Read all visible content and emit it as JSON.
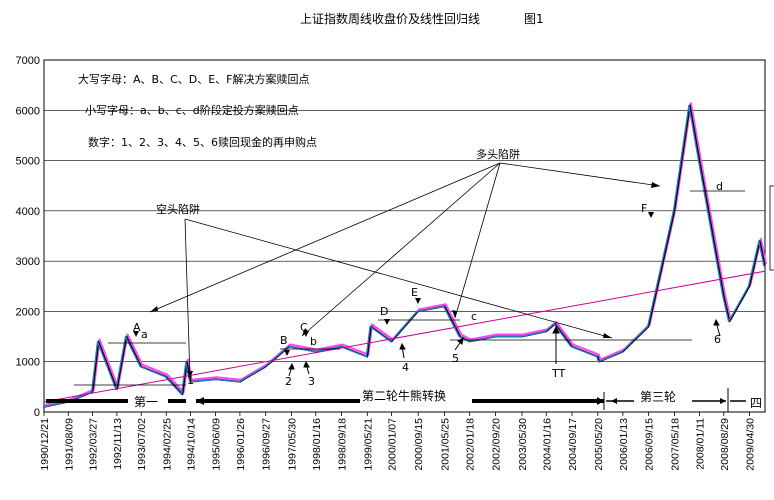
{
  "chart_data": {
    "type": "line",
    "title": "上证指数周线收盘价及线性回归线",
    "figure_label": "图1",
    "ylim": [
      0,
      7000
    ],
    "y_ticks": [
      0,
      1000,
      2000,
      3000,
      4000,
      5000,
      6000,
      7000
    ],
    "x_tick_labels": [
      "1990/12/21",
      "1991/08/09",
      "1992/03/27",
      "1992/11/13",
      "1993/07/02",
      "1994/02/25",
      "1994/10/14",
      "1995/06/09",
      "1996/01/26",
      "1996/09/27",
      "1997/05/30",
      "1998/01/16",
      "1998/09/18",
      "1999/05/21",
      "2000/01/07",
      "2000/09/15",
      "2001/05/25",
      "2002/01/18",
      "2002/09/20",
      "2003/05/30",
      "2004/01/16",
      "2004/09/17",
      "2005/05/20",
      "2006/01/13",
      "2006/09/15",
      "2007/05/18",
      "2008/01/11",
      "2008/08/29",
      "2009/04/30"
    ],
    "series": [
      {
        "color": "#1f7fbf",
        "x": [
          "1990/12/21",
          "1991/08/09",
          "1992/03/27",
          "1992/05/22",
          "1992/11/13",
          "1993/02/12",
          "1993/07/02",
          "1994/02/25",
          "1994/07/29",
          "1994/09/09",
          "1994/10/14",
          "1995/06/09",
          "1996/01/26",
          "1996/09/27",
          "1997/05/09",
          "1998/01/16",
          "1998/09/18",
          "1999/05/21",
          "1999/06/25",
          "2000/01/07",
          "2000/09/15",
          "2001/05/25",
          "2001/10/19",
          "2002/01/18",
          "2002/09/20",
          "2003/05/30",
          "2004/01/16",
          "2004/04/09",
          "2004/09/17",
          "2005/05/20",
          "2005/06/03",
          "2006/01/13",
          "2006/09/15",
          "2007/05/18",
          "2007/10/12",
          "2008/01/11",
          "2008/08/29",
          "2008/10/24",
          "2009/04/30",
          "2009/08/07",
          "2009/09/25"
        ],
        "y": [
          100,
          200,
          400,
          1400,
          450,
          1500,
          900,
          700,
          350,
          1000,
          600,
          650,
          600,
          900,
          1300,
          1200,
          1300,
          1100,
          1700,
          1400,
          2000,
          2100,
          1500,
          1400,
          1500,
          1500,
          1600,
          1750,
          1300,
          1100,
          1000,
          1200,
          1700,
          4000,
          6100,
          5000,
          2300,
          1800,
          2500,
          3400,
          2900
        ]
      },
      {
        "name": "线性回归线",
        "color": "#cc0099",
        "x": [
          "1990/12/21",
          "2009/09/25"
        ],
        "y": [
          200,
          2800
        ]
      }
    ],
    "annotations": [
      "大写字母：A、B、C、D、E、F解决方案赎回点",
      "小写字母：a、b、c、d阶段定投方案赎回点",
      "数字：1、2、3、4、5、6赎回现金的再申购点",
      "多头陷阱",
      "空头陷阱",
      "A",
      "a",
      "B",
      "b",
      "C",
      "D",
      "E",
      "c",
      "F",
      "d",
      "1",
      "2",
      "3",
      "4",
      "5",
      "6",
      "TT"
    ],
    "phases": [
      "第一",
      "第二轮牛熊转换",
      "第三轮",
      "四"
    ]
  }
}
